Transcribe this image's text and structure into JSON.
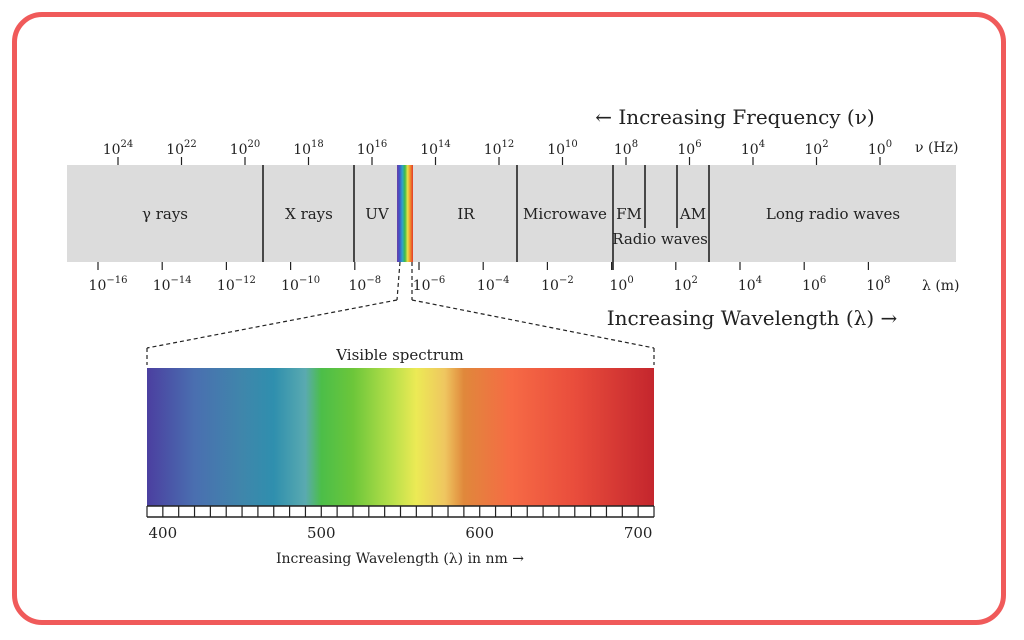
{
  "colors": {
    "border": "#f05a5a",
    "band_fill": "#dcdcdc",
    "ink": "#222222"
  },
  "frequency_axis": {
    "title": "← Increasing Frequency (ν)",
    "unit": "ν (Hz)",
    "ticks": [
      {
        "base": "10",
        "exp": "24"
      },
      {
        "base": "10",
        "exp": "22"
      },
      {
        "base": "10",
        "exp": "20"
      },
      {
        "base": "10",
        "exp": "18"
      },
      {
        "base": "10",
        "exp": "16"
      },
      {
        "base": "10",
        "exp": "14"
      },
      {
        "base": "10",
        "exp": "12"
      },
      {
        "base": "10",
        "exp": "10"
      },
      {
        "base": "10",
        "exp": "8"
      },
      {
        "base": "10",
        "exp": "6"
      },
      {
        "base": "10",
        "exp": "4"
      },
      {
        "base": "10",
        "exp": "2"
      },
      {
        "base": "10",
        "exp": "0"
      }
    ]
  },
  "wavelength_axis": {
    "title": "Increasing Wavelength (λ) →",
    "unit": "λ (m)",
    "ticks": [
      {
        "base": "10",
        "exp": "−16"
      },
      {
        "base": "10",
        "exp": "−14"
      },
      {
        "base": "10",
        "exp": "−12"
      },
      {
        "base": "10",
        "exp": "−10"
      },
      {
        "base": "10",
        "exp": "−8"
      },
      {
        "base": "10",
        "exp": "−6"
      },
      {
        "base": "10",
        "exp": "−4"
      },
      {
        "base": "10",
        "exp": "−2"
      },
      {
        "base": "10",
        "exp": "0"
      },
      {
        "base": "10",
        "exp": "2"
      },
      {
        "base": "10",
        "exp": "4"
      },
      {
        "base": "10",
        "exp": "6"
      },
      {
        "base": "10",
        "exp": "8"
      }
    ]
  },
  "bands": {
    "gamma": "γ rays",
    "xray": "X rays",
    "uv": "UV",
    "ir": "IR",
    "microwave": "Microwave",
    "fm": "FM",
    "am": "AM",
    "radio": "Radio waves",
    "long_radio": "Long radio waves"
  },
  "visible": {
    "title": "Visible spectrum",
    "xlabel": "Increasing Wavelength (λ) in nm →",
    "ticks": [
      "400",
      "500",
      "600",
      "700"
    ],
    "range_nm": [
      390,
      710
    ],
    "gradient": [
      {
        "nm": 390,
        "color": "#4b3fa0"
      },
      {
        "nm": 420,
        "color": "#4a6fb0"
      },
      {
        "nm": 450,
        "color": "#3f86ab"
      },
      {
        "nm": 470,
        "color": "#2f8fae"
      },
      {
        "nm": 490,
        "color": "#5aaab0"
      },
      {
        "nm": 500,
        "color": "#4cbe49"
      },
      {
        "nm": 520,
        "color": "#6cc63a"
      },
      {
        "nm": 545,
        "color": "#b9e04a"
      },
      {
        "nm": 560,
        "color": "#ecea55"
      },
      {
        "nm": 578,
        "color": "#efc660"
      },
      {
        "nm": 590,
        "color": "#e0883b"
      },
      {
        "nm": 620,
        "color": "#f66a45"
      },
      {
        "nm": 660,
        "color": "#e94d3c"
      },
      {
        "nm": 710,
        "color": "#c4262d"
      }
    ]
  }
}
